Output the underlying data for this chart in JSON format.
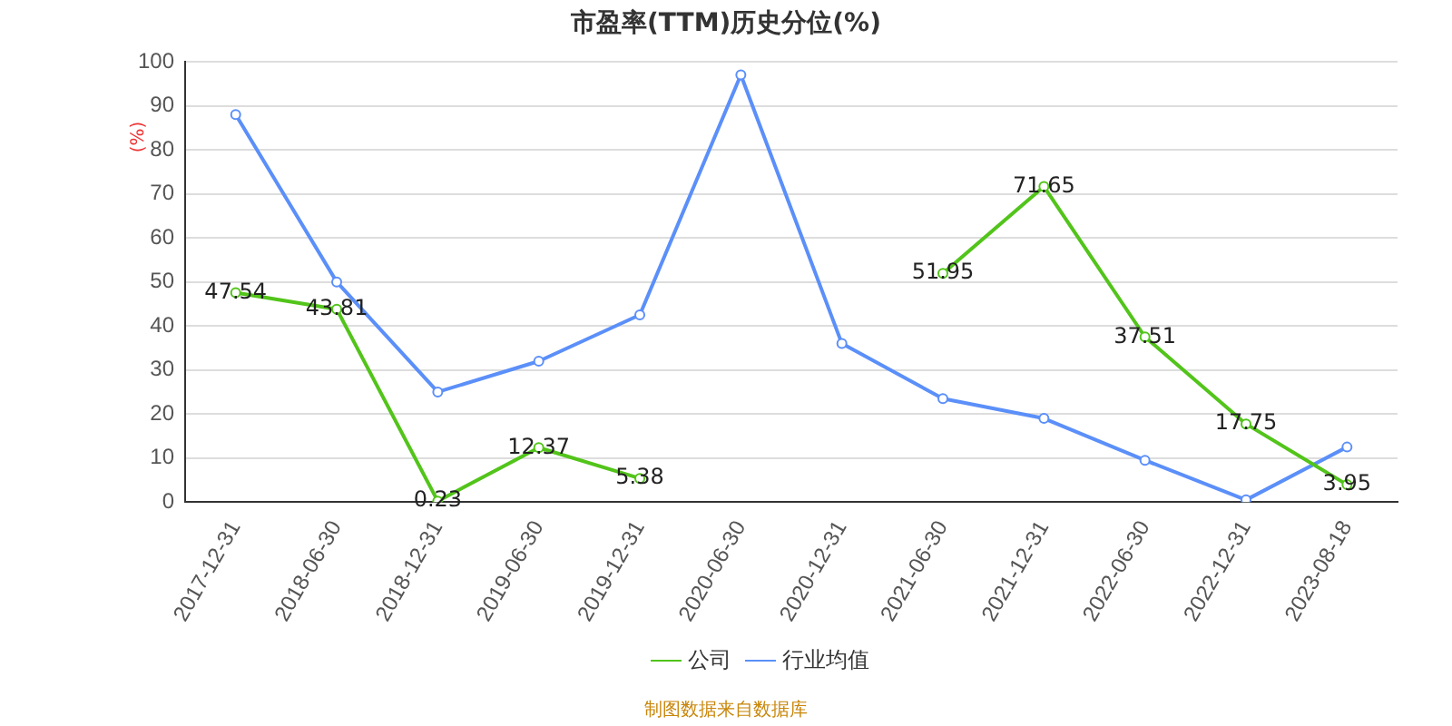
{
  "chart_data": {
    "type": "line",
    "title": "市盈率(TTM)历史分位(%)",
    "ylabel": "(%)",
    "categories": [
      "2017-12-31",
      "2018-06-30",
      "2018-12-31",
      "2019-06-30",
      "2019-12-31",
      "2020-06-30",
      "2020-12-31",
      "2021-06-30",
      "2021-12-31",
      "2022-06-30",
      "2022-12-31",
      "2023-08-18"
    ],
    "series": [
      {
        "name": "公司",
        "color": "#52c41a",
        "values": [
          47.54,
          43.81,
          0.23,
          12.37,
          5.38,
          null,
          null,
          51.95,
          71.65,
          37.51,
          17.75,
          3.95
        ],
        "value_labels": [
          "47.54",
          "43.81",
          "0.23",
          "12.37",
          "5.38",
          null,
          null,
          "51.95",
          "71.65",
          "37.51",
          "17.75",
          "3.95"
        ]
      },
      {
        "name": "行业均值",
        "color": "#5b8ff9",
        "values": [
          88,
          50,
          25,
          32,
          42.5,
          97,
          36,
          23.5,
          19,
          9.5,
          0.5,
          12.5
        ]
      }
    ],
    "ylim": [
      0,
      100
    ],
    "yticks": [
      0,
      10,
      20,
      30,
      40,
      50,
      60,
      70,
      80,
      90,
      100
    ],
    "grid": "y",
    "legend": "bottom",
    "marker": "circle",
    "line_style": "solid",
    "annotations": [
      "制图数据来自数据库"
    ]
  }
}
